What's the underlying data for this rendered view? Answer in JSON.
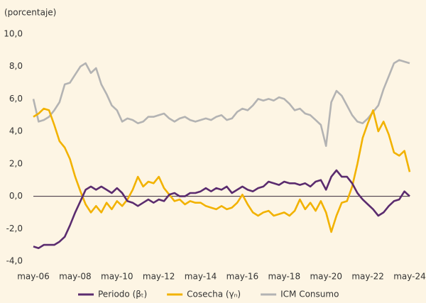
{
  "chart_data": {
    "type": "line",
    "y_axis_label": "(porcentaje)",
    "x": [
      2006.33,
      2006.58,
      2006.83,
      2007.08,
      2007.33,
      2007.58,
      2007.83,
      2008.08,
      2008.33,
      2008.58,
      2008.83,
      2009.08,
      2009.33,
      2009.58,
      2009.83,
      2010.08,
      2010.33,
      2010.58,
      2010.83,
      2011.08,
      2011.33,
      2011.58,
      2011.83,
      2012.08,
      2012.33,
      2012.58,
      2012.83,
      2013.08,
      2013.33,
      2013.58,
      2013.83,
      2014.08,
      2014.33,
      2014.58,
      2014.83,
      2015.08,
      2015.33,
      2015.58,
      2015.83,
      2016.08,
      2016.33,
      2016.58,
      2016.83,
      2017.08,
      2017.33,
      2017.58,
      2017.83,
      2018.08,
      2018.33,
      2018.58,
      2018.83,
      2019.08,
      2019.33,
      2019.58,
      2019.83,
      2020.08,
      2020.33,
      2020.58,
      2020.83,
      2021.08,
      2021.33,
      2021.58,
      2021.83,
      2022.08,
      2022.33,
      2022.58,
      2022.83,
      2023.08,
      2023.33,
      2023.58,
      2023.83,
      2024.08,
      2024.33
    ],
    "series": [
      {
        "name": "Periodo (βₜ)",
        "color": "#5b2c6f",
        "values": [
          -3.1,
          -3.2,
          -3.0,
          -3.0,
          -3.0,
          -2.8,
          -2.5,
          -1.8,
          -1.0,
          -0.3,
          0.4,
          0.6,
          0.4,
          0.6,
          0.4,
          0.2,
          0.5,
          0.2,
          -0.3,
          -0.4,
          -0.6,
          -0.4,
          -0.2,
          -0.4,
          -0.2,
          -0.3,
          0.1,
          0.2,
          0.0,
          0.0,
          0.2,
          0.2,
          0.3,
          0.5,
          0.3,
          0.5,
          0.4,
          0.6,
          0.2,
          0.4,
          0.6,
          0.4,
          0.3,
          0.5,
          0.6,
          0.9,
          0.8,
          0.7,
          0.9,
          0.8,
          0.8,
          0.7,
          0.8,
          0.6,
          0.9,
          1.0,
          0.4,
          1.2,
          1.6,
          1.2,
          1.2,
          0.8,
          0.2,
          -0.2,
          -0.5,
          -0.8,
          -1.2,
          -1.0,
          -0.6,
          -0.3,
          -0.2,
          0.3,
          0.0
        ]
      },
      {
        "name": "Cosecha (γₙ)",
        "color": "#f2b200",
        "values": [
          4.9,
          5.1,
          5.4,
          5.3,
          4.4,
          3.4,
          3.0,
          2.3,
          1.2,
          0.3,
          -0.5,
          -1.0,
          -0.6,
          -1.0,
          -0.4,
          -0.8,
          -0.3,
          -0.6,
          -0.2,
          0.4,
          1.2,
          0.6,
          0.9,
          0.8,
          1.2,
          0.5,
          0.1,
          -0.3,
          -0.2,
          -0.5,
          -0.3,
          -0.4,
          -0.4,
          -0.6,
          -0.7,
          -0.8,
          -0.6,
          -0.8,
          -0.7,
          -0.4,
          0.1,
          -0.5,
          -1.0,
          -1.2,
          -1.0,
          -0.9,
          -1.2,
          -1.1,
          -1.0,
          -1.2,
          -0.9,
          -0.2,
          -0.8,
          -0.4,
          -0.9,
          -0.3,
          -1.0,
          -2.2,
          -1.2,
          -0.4,
          -0.3,
          0.6,
          2.0,
          3.6,
          4.5,
          5.3,
          4.0,
          4.6,
          3.8,
          2.7,
          2.5,
          2.8,
          1.5
        ]
      },
      {
        "name": "ICM Consumo",
        "color": "#b3b3b3",
        "values": [
          6.0,
          4.6,
          4.7,
          4.9,
          5.3,
          5.8,
          6.9,
          7.0,
          7.5,
          8.0,
          8.2,
          7.6,
          7.9,
          6.9,
          6.3,
          5.6,
          5.3,
          4.6,
          4.8,
          4.7,
          4.5,
          4.6,
          4.9,
          4.9,
          5.0,
          5.1,
          4.8,
          4.6,
          4.8,
          4.9,
          4.7,
          4.6,
          4.7,
          4.8,
          4.7,
          4.9,
          5.0,
          4.7,
          4.8,
          5.2,
          5.4,
          5.3,
          5.6,
          6.0,
          5.9,
          6.0,
          5.9,
          6.1,
          6.0,
          5.7,
          5.3,
          5.4,
          5.1,
          5.0,
          4.7,
          4.4,
          3.1,
          5.8,
          6.5,
          6.2,
          5.6,
          5.0,
          4.6,
          4.5,
          4.8,
          5.2,
          5.6,
          6.6,
          7.4,
          8.2,
          8.4,
          8.3,
          8.2
        ]
      }
    ],
    "xlim": [
      2006.33,
      2024.33
    ],
    "xticks": [
      {
        "value": 2006.33,
        "label": "may-06"
      },
      {
        "value": 2008.33,
        "label": "may-08"
      },
      {
        "value": 2010.33,
        "label": "may-10"
      },
      {
        "value": 2012.33,
        "label": "may-12"
      },
      {
        "value": 2014.33,
        "label": "may-14"
      },
      {
        "value": 2016.33,
        "label": "may-16"
      },
      {
        "value": 2018.33,
        "label": "may-18"
      },
      {
        "value": 2020.33,
        "label": "may-20"
      },
      {
        "value": 2022.33,
        "label": "may-22"
      },
      {
        "value": 2024.33,
        "label": "may-24"
      }
    ],
    "ylim": [
      -4,
      10
    ],
    "yticks": [
      {
        "value": -4,
        "label": "-4,0"
      },
      {
        "value": -2,
        "label": "-2,0"
      },
      {
        "value": 0,
        "label": "0,0"
      },
      {
        "value": 2,
        "label": "2,0"
      },
      {
        "value": 4,
        "label": "4,0"
      },
      {
        "value": 6,
        "label": "6,0"
      },
      {
        "value": 8,
        "label": "8,0"
      },
      {
        "value": 10,
        "label": "10,0"
      }
    ],
    "grid": false,
    "legend": "bottom"
  }
}
